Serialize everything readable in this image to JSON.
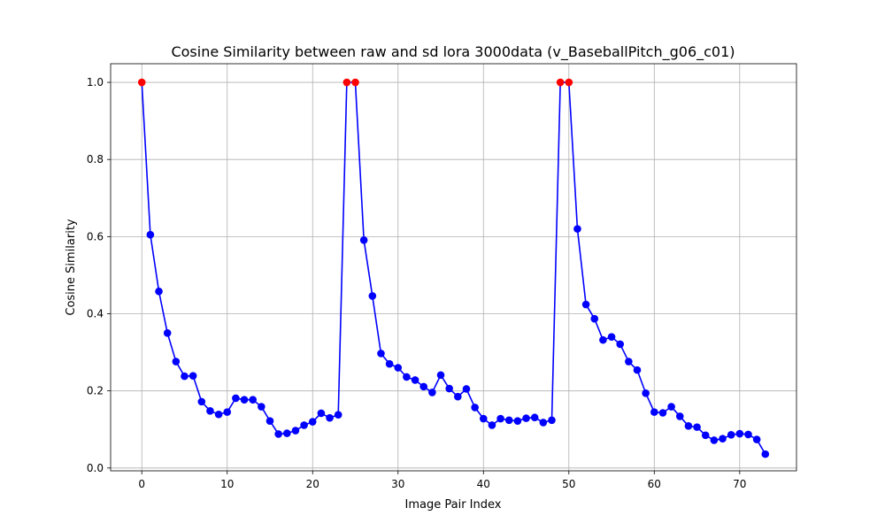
{
  "chart_data": {
    "type": "line",
    "title": "Cosine Similarity between raw and sd lora 3000data (v_BaseballPitch_g06_c01)",
    "xlabel": "Image Pair Index",
    "ylabel": "Cosine Similarity",
    "xlim": [
      -3.65,
      76.65
    ],
    "ylim": [
      -0.0073,
      1.0483
    ],
    "xticks": [
      0,
      10,
      20,
      30,
      40,
      50,
      60,
      70
    ],
    "yticks": [
      0.0,
      0.2,
      0.4,
      0.6,
      0.8,
      1.0
    ],
    "ytick_labels": [
      "0.0",
      "0.2",
      "0.4",
      "0.6",
      "0.8",
      "1.0"
    ],
    "grid": true,
    "line_color": "#0000ff",
    "marker_color": "#0000ff",
    "highlight_color": "#ff0000",
    "series": [
      {
        "values": [
          1.0,
          0.605,
          0.458,
          0.35,
          0.276,
          0.238,
          0.239,
          0.172,
          0.148,
          0.139,
          0.145,
          0.181,
          0.177,
          0.177,
          0.159,
          0.122,
          0.088,
          0.09,
          0.097,
          0.111,
          0.12,
          0.142,
          0.13,
          0.138,
          1.0,
          1.0,
          0.591,
          0.446,
          0.297,
          0.27,
          0.26,
          0.236,
          0.228,
          0.211,
          0.196,
          0.241,
          0.206,
          0.185,
          0.205,
          0.157,
          0.128,
          0.111,
          0.128,
          0.124,
          0.122,
          0.129,
          0.131,
          0.118,
          0.124,
          1.0,
          1.0,
          0.62,
          0.424,
          0.387,
          0.332,
          0.34,
          0.321,
          0.276,
          0.254,
          0.194,
          0.145,
          0.143,
          0.159,
          0.134,
          0.109,
          0.106,
          0.085,
          0.072,
          0.076,
          0.086,
          0.089,
          0.087,
          0.074,
          0.036
        ]
      }
    ],
    "highlighted_indices": [
      0,
      24,
      25,
      49,
      50
    ]
  }
}
